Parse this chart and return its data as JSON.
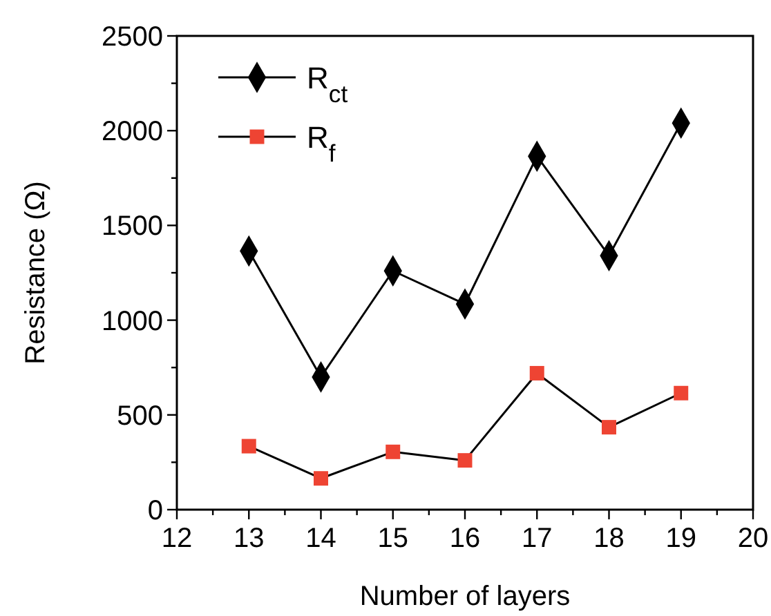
{
  "chart_data": {
    "type": "line",
    "xlabel": "Number of layers",
    "ylabel": "Resistance (Ω)",
    "x": [
      13,
      14,
      15,
      16,
      17,
      18,
      19
    ],
    "series": [
      {
        "name": "R$_{ct}$",
        "color": "#000000",
        "marker": "diamond",
        "values": [
          1365,
          700,
          1260,
          1085,
          1865,
          1340,
          2040
        ]
      },
      {
        "name": "R$_{f}$",
        "color": "#ee4433",
        "marker": "square",
        "values": [
          335,
          165,
          305,
          260,
          720,
          435,
          615
        ]
      }
    ],
    "xlim": [
      12,
      20
    ],
    "xticks": [
      12,
      {
        "value": 12.5,
        "label": null
      },
      13,
      {
        "value": 13.5,
        "label": null
      },
      14,
      {
        "value": 14.5,
        "label": null
      },
      15,
      {
        "value": 15.5,
        "label": null
      },
      16,
      {
        "value": 16.5,
        "label": null
      },
      17,
      {
        "value": 17.5,
        "label": null
      },
      18,
      {
        "value": 18.5,
        "label": null
      },
      19,
      {
        "value": 19.5,
        "label": null
      },
      20
    ],
    "ylim": [
      0,
      2500
    ],
    "yticks": [
      0,
      {
        "value": 250,
        "label": null
      },
      500,
      {
        "value": 750,
        "label": null
      },
      1000,
      {
        "value": 1250,
        "label": null
      },
      1500,
      {
        "value": 1750,
        "label": null
      },
      2000,
      {
        "value": 2250,
        "label": null
      },
      2500
    ],
    "grid": false,
    "legend": "top left",
    "line_style": "solid"
  }
}
